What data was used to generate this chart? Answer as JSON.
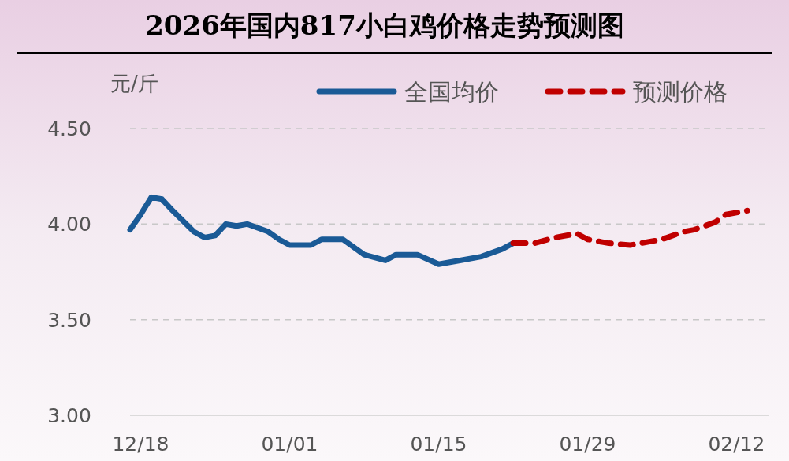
{
  "chart_data": {
    "type": "line",
    "title": "2026年国内817小白鸡价格走势预测图",
    "ylabel": "元/斤",
    "xlim": [
      "2025-12-17",
      "2026-02-15"
    ],
    "xticks": [
      {
        "value": "2025-12-18",
        "label": "12/18"
      },
      {
        "value": "2026-01-01",
        "label": "01/01"
      },
      {
        "value": "2026-01-15",
        "label": "01/15"
      },
      {
        "value": "2026-01-29",
        "label": "01/29"
      },
      {
        "value": "2026-02-12",
        "label": "02/12"
      }
    ],
    "ylim": [
      3,
      4.5
    ],
    "yticks": [
      {
        "value": 3,
        "label": "3.00"
      },
      {
        "value": 3.5,
        "label": "3.50"
      },
      {
        "value": 4,
        "label": "4.00"
      },
      {
        "value": 4.5,
        "label": "4.50"
      }
    ],
    "grid": "y",
    "legend": "top right",
    "series": [
      {
        "name": "全国均价",
        "color": "#1a5a96",
        "line_style": "solid",
        "x": [
          "2025-12-17",
          "2025-12-18",
          "2025-12-19",
          "2025-12-20",
          "2025-12-21",
          "2025-12-23",
          "2025-12-24",
          "2025-12-25",
          "2025-12-26",
          "2025-12-27",
          "2025-12-28",
          "2025-12-30",
          "2025-12-31",
          "2026-01-01",
          "2026-01-03",
          "2026-01-04",
          "2026-01-05",
          "2026-01-06",
          "2026-01-08",
          "2026-01-10",
          "2026-01-11",
          "2026-01-13",
          "2026-01-15",
          "2026-01-17",
          "2026-01-19",
          "2026-01-21",
          "2026-01-22"
        ],
        "values": [
          3.97,
          4.05,
          4.14,
          4.13,
          4.07,
          3.96,
          3.93,
          3.94,
          4.0,
          3.99,
          4.0,
          3.96,
          3.92,
          3.89,
          3.89,
          3.92,
          3.92,
          3.92,
          3.84,
          3.81,
          3.84,
          3.84,
          3.79,
          3.81,
          3.83,
          3.87,
          3.9
        ]
      },
      {
        "name": "预测价格",
        "color": "#c00000",
        "line_style": "dashed",
        "x": [
          "2026-01-22",
          "2026-01-24",
          "2026-01-26",
          "2026-01-28",
          "2026-01-29",
          "2026-01-31",
          "2026-02-02",
          "2026-02-03",
          "2026-02-05",
          "2026-02-07",
          "2026-02-08",
          "2026-02-09",
          "2026-02-10",
          "2026-02-11",
          "2026-02-13"
        ],
        "values": [
          3.9,
          3.9,
          3.93,
          3.95,
          3.92,
          3.9,
          3.89,
          3.9,
          3.92,
          3.96,
          3.97,
          3.99,
          4.01,
          4.05,
          4.07
        ]
      }
    ]
  }
}
